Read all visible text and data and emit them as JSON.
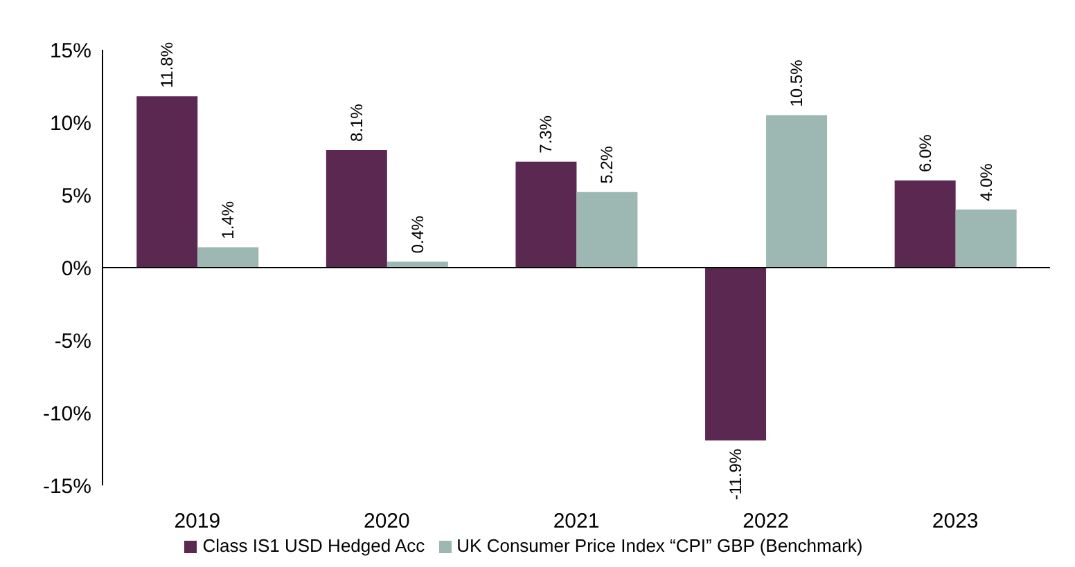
{
  "chart_data": {
    "type": "bar",
    "categories": [
      "2019",
      "2020",
      "2021",
      "2022",
      "2023"
    ],
    "series": [
      {
        "name": "Class IS1 USD Hedged Acc",
        "color": "#5a2851",
        "values": [
          11.8,
          8.1,
          7.3,
          -11.9,
          6.0
        ],
        "value_labels": [
          "11.8%",
          "8.1%",
          "7.3%",
          "-11.9%",
          "6.0%"
        ]
      },
      {
        "name": "UK Consumer Price Index “CPI” GBP (Benchmark)",
        "color": "#9db8b3",
        "values": [
          1.4,
          0.4,
          5.2,
          10.5,
          4.0
        ],
        "value_labels": [
          "1.4%",
          "0.4%",
          "5.2%",
          "10.5%",
          "4.0%"
        ]
      }
    ],
    "ylim": [
      -15,
      15
    ],
    "yticks": [
      {
        "value": 15,
        "label": "15%"
      },
      {
        "value": 10,
        "label": "10%"
      },
      {
        "value": 5,
        "label": "5%"
      },
      {
        "value": 0,
        "label": "0%"
      },
      {
        "value": -5,
        "label": "-5%"
      },
      {
        "value": -10,
        "label": "-10%"
      },
      {
        "value": -15,
        "label": "-15%"
      }
    ],
    "legend": "bottom"
  }
}
